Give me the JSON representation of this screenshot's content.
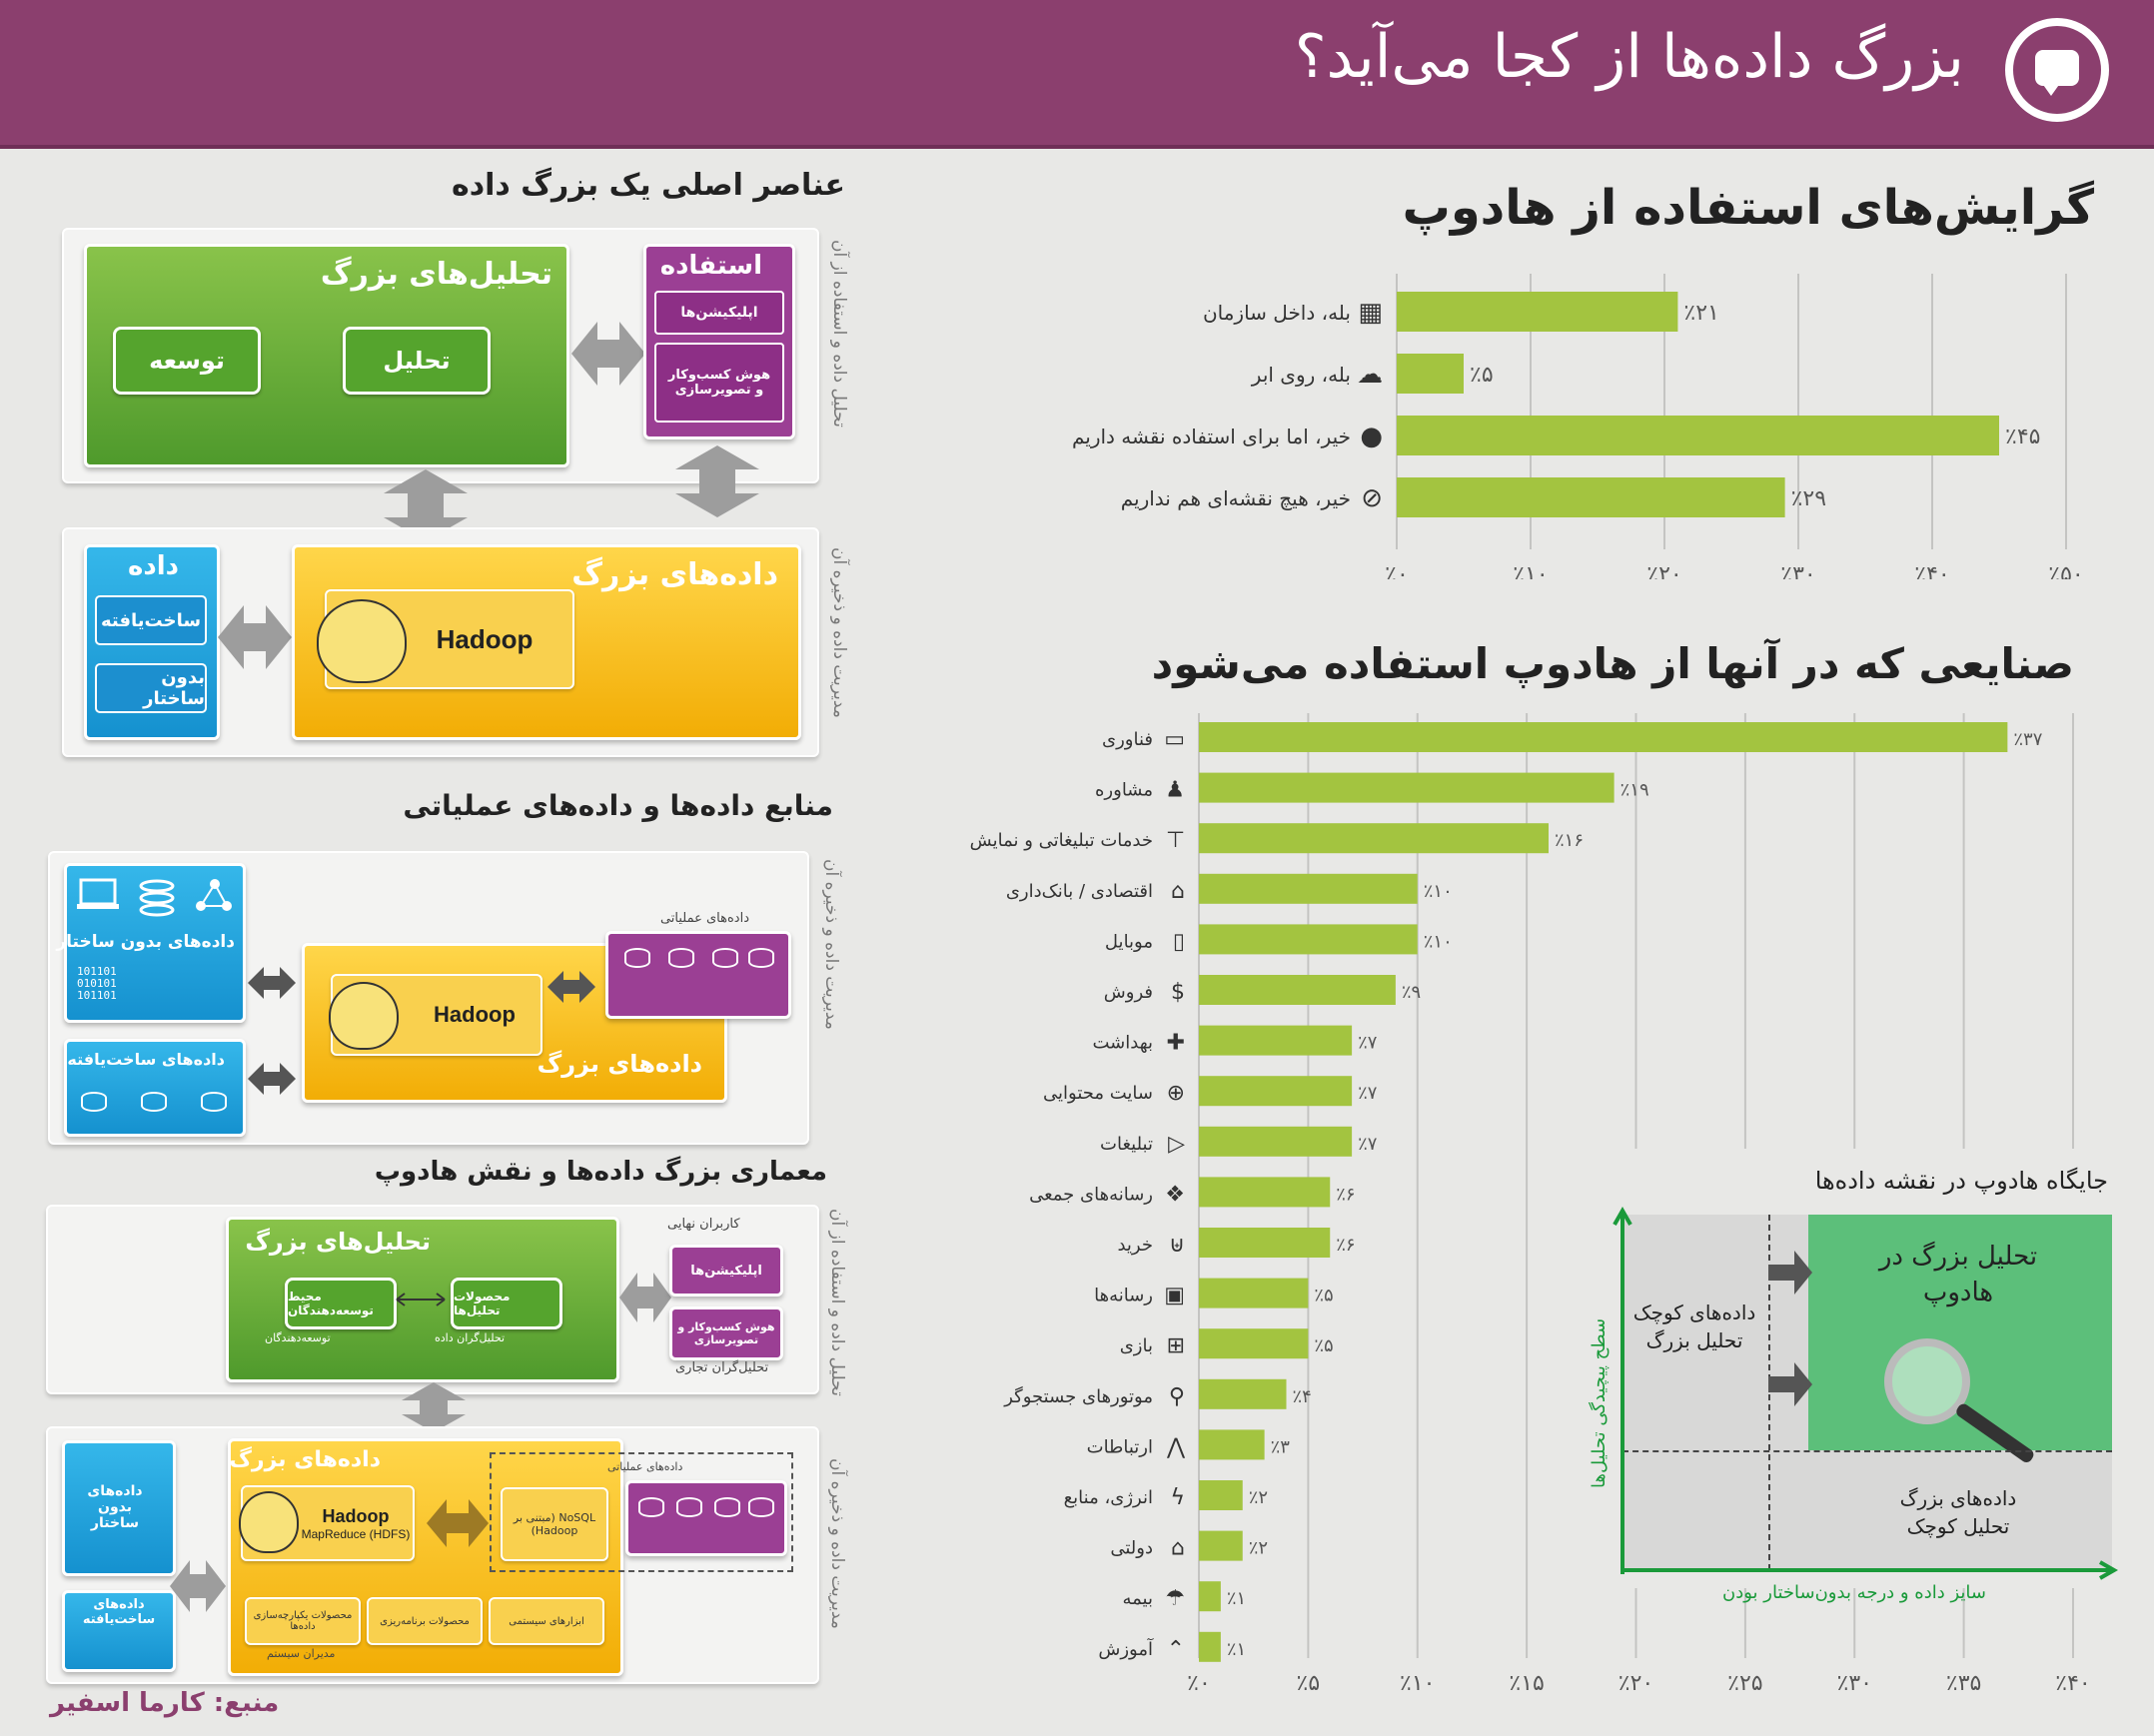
{
  "header": {
    "title": "بزرگ داده‌ها از کجا می‌آید؟",
    "color": "#8b3f6e"
  },
  "section_elements": {
    "heading": "عناصر اصلی یک بزرگ داده",
    "big_analytics": {
      "title": "تحلیل‌های بزرگ",
      "btn_analysis": "تحلیل",
      "btn_develop": "توسعه"
    },
    "usage": {
      "title": "استفاده",
      "apps": "اپلیکیشن‌ها",
      "bi_line1": "هوش کسب‌وکار",
      "bi_line2": "و تصویرسازی"
    },
    "data": {
      "title": "داده",
      "structured": "ساخت‌یافته",
      "unstructured": "بدون ساختار"
    },
    "big_data": {
      "title": "داده‌های بزرگ",
      "hadoop": "Hadoop"
    },
    "side_top": "تحلیل داده و استفاده از آن",
    "side_bottom": "مدیریت داده و ذخیره آن"
  },
  "section_sources": {
    "heading": "منابع داده‌ها و داده‌های عملیاتی",
    "unstructured": "داده‌های بدون ساختار",
    "structured": "داده‌های ساخت‌یافته",
    "operational": "داده‌های عملیاتی",
    "big_data": "داده‌های بزرگ",
    "hadoop": "Hadoop",
    "side": "مدیریت داده و ذخیره آن"
  },
  "section_arch": {
    "heading": "معماری بزرگ داده‌ها و نقش هادوپ",
    "big_analytics": "تحلیل‌های بزرگ",
    "dev_env": "محیط توسعه‌دهندگان",
    "analytics_products": "محصولات تحلیل‌ها",
    "developers": "توسعه‌دهندگان",
    "analysts": "تحلیل‌گران داده",
    "end_users": "کاربران نهایی",
    "apps": "اپلیکیشن‌ها",
    "bi": "هوش کسب‌وکار و تصویرسازی",
    "biz_analysts": "تحلیل‌گران تجاری",
    "big_data": "داده‌های بزرگ",
    "hadoop": "Hadoop",
    "hadoop_sub": "MapReduce (HDFS)",
    "nosql": "NoSQL (مبتنی بر Hadoop)",
    "operational": "داده‌های عملیاتی",
    "integration": "محصولات یکپارچه‌سازی داده‌ها",
    "prod_planning": "محصولات برنامه‌ریزی",
    "system_tools": "ابزارهای سیستمی",
    "sys_admins": "مدیران سیستم",
    "unstructured": "داده‌های بدون ساختار",
    "structured": "داده‌های ساخت‌یافته",
    "side_top": "تحلیل داده و استفاده از آن",
    "side_bottom": "مدیریت داده و ذخیره آن"
  },
  "source": "منبع: کارما اسفیر",
  "bar_color": "#a3c440",
  "chart_data": [
    {
      "type": "bar",
      "orientation": "horizontal",
      "title": "گرایش‌های استفاده از هادوپ",
      "categories": [
        "بله، داخل سازمان",
        "بله، روی ابر",
        "خیر، اما برای استفاده نقشه داریم",
        "خیر، هیچ نقشه‌ای هم نداریم"
      ],
      "values": [
        21,
        5,
        45,
        29
      ],
      "value_labels": [
        "٪۲۱",
        "٪۵",
        "٪۴۵",
        "٪۲۹"
      ],
      "icons": [
        "building-icon",
        "cloud-icon",
        "speech-icon",
        "no-icon"
      ],
      "xlim": [
        0,
        50
      ],
      "ticks": [
        "٪۰",
        "٪۱۰",
        "٪۲۰",
        "٪۳۰",
        "٪۴۰",
        "٪۵۰"
      ]
    },
    {
      "type": "bar",
      "orientation": "horizontal",
      "title": "صنایعی که در آنها از هادوپ استفاده می‌شود",
      "categories": [
        "فناوری",
        "مشاوره",
        "خدمات تبلیغاتی و نمایش",
        "اقتصادی / بانک‌داری",
        "موبایل",
        "فروش",
        "بهداشت",
        "سایت محتوایی",
        "تبلیغات",
        "رسانه‌های جمعی",
        "خرید",
        "رسانه‌ها",
        "بازی",
        "موتورهای جستجوگر",
        "ارتباطات",
        "انرژی، منابع",
        "دولتی",
        "بیمه",
        "آموزش"
      ],
      "values": [
        37,
        19,
        16,
        10,
        10,
        9,
        7,
        7,
        7,
        6,
        6,
        5,
        5,
        4,
        3,
        2,
        2,
        1,
        1
      ],
      "value_labels": [
        "٪۳۷",
        "٪۱۹",
        "٪۱۶",
        "٪۱۰",
        "٪۱۰",
        "٪۹",
        "٪۷",
        "٪۷",
        "٪۷",
        "٪۶",
        "٪۶",
        "٪۵",
        "٪۵",
        "٪۴",
        "٪۳",
        "٪۲",
        "٪۲",
        "٪۱",
        "٪۱"
      ],
      "icons": [
        "laptop-icon",
        "people-icon",
        "billboard-icon",
        "bank-icon",
        "mobile-icon",
        "dollar-icon",
        "health-icon",
        "globe-icon",
        "play-icon",
        "social-icon",
        "basket-icon",
        "tv-icon",
        "gamepad-icon",
        "search-icon",
        "antenna-icon",
        "bolt-icon",
        "government-icon",
        "umbrella-icon",
        "graduation-icon"
      ],
      "xlim": [
        0,
        40
      ],
      "ticks": [
        "٪۰",
        "٪۵",
        "٪۱۰",
        "٪۱۵",
        "٪۲۰",
        "٪۲۵",
        "٪۳۰",
        "٪۳۵",
        "٪۴۰"
      ]
    }
  ],
  "quadrant": {
    "title": "جایگاه هادوپ در نقشه داده‌ها",
    "top_left": "داده‌های کوچک تحلیل بزرگ",
    "top_right_line1": "تحلیل بزرگ در",
    "top_right_line2": "هادوپ",
    "bottom_right_line1": "داده‌های بزرگ",
    "bottom_right_line2": "تحلیل کوچک",
    "x_label": "سایز داده و درجه بدون‌ساختار بودن",
    "y_label": "سطح پیچیدگی تحلیل‌ها",
    "highlight_color": "#5cbf7a"
  }
}
